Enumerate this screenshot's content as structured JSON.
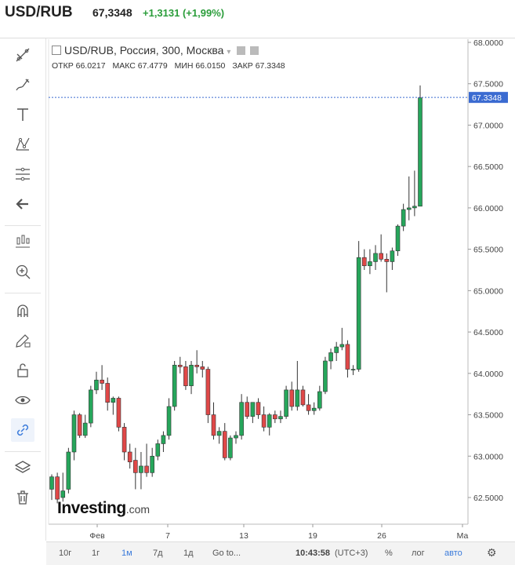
{
  "header": {
    "pair": "USD/RUB",
    "price": "67,3348",
    "change": "+1,3131 (+1,99%)"
  },
  "legend": {
    "title": "USD/RUB, Россия, 300, Москва",
    "open": "ОТКР 66.0217",
    "high": "МАКС 67.4779",
    "low": "МИН 66.0150",
    "close": "ЗАКР 67.3348"
  },
  "logo": {
    "main": "Investing",
    "suffix": ".com"
  },
  "toolbar": {
    "icons": [
      "trend-line-icon",
      "brush-icon",
      "text-icon",
      "pattern-icon",
      "fib-icon",
      "back-arrow-icon",
      "measure-icon",
      "zoom-in-icon",
      "magnet-icon",
      "pencil-lock-icon",
      "unlock-icon",
      "eye-icon",
      "link-icon",
      "layers-icon",
      "trash-icon"
    ]
  },
  "bottom": {
    "ranges": [
      "10г",
      "1г",
      "1м",
      "7д",
      "1д"
    ],
    "active_range": "1м",
    "goto": "Go to...",
    "time": "10:43:58",
    "tz": "(UTC+3)",
    "percent": "%",
    "log": "лог",
    "auto": "авто"
  },
  "chart_data": {
    "type": "candlestick",
    "yticks": [
      62.5,
      63.0,
      63.5,
      64.0,
      64.5,
      65.0,
      65.5,
      66.0,
      66.5,
      67.0,
      67.5,
      68.0
    ],
    "ylim": [
      62.0,
      68.05
    ],
    "xticks": [
      "Фев",
      "7",
      "13",
      "19",
      "26",
      "Ма"
    ],
    "last_price": "67.3348",
    "colors": {
      "up": "#26a65b",
      "down": "#e04848",
      "last_line": "#3b6bd1"
    },
    "candles": [
      {
        "o": 62.6,
        "h": 62.78,
        "l": 62.47,
        "c": 62.75
      },
      {
        "o": 62.75,
        "h": 62.8,
        "l": 62.43,
        "c": 62.48
      },
      {
        "o": 62.5,
        "h": 62.8,
        "l": 62.45,
        "c": 62.58
      },
      {
        "o": 62.6,
        "h": 63.1,
        "l": 62.55,
        "c": 63.05
      },
      {
        "o": 63.05,
        "h": 63.55,
        "l": 62.95,
        "c": 63.5
      },
      {
        "o": 63.5,
        "h": 63.52,
        "l": 63.22,
        "c": 63.25
      },
      {
        "o": 63.25,
        "h": 63.5,
        "l": 63.22,
        "c": 63.4
      },
      {
        "o": 63.4,
        "h": 63.85,
        "l": 63.35,
        "c": 63.8
      },
      {
        "o": 63.8,
        "h": 64.02,
        "l": 63.75,
        "c": 63.92
      },
      {
        "o": 63.92,
        "h": 64.1,
        "l": 63.8,
        "c": 63.88
      },
      {
        "o": 63.88,
        "h": 63.95,
        "l": 63.55,
        "c": 63.65
      },
      {
        "o": 63.65,
        "h": 63.72,
        "l": 63.5,
        "c": 63.7
      },
      {
        "o": 63.7,
        "h": 63.72,
        "l": 63.3,
        "c": 63.35
      },
      {
        "o": 63.35,
        "h": 63.4,
        "l": 62.95,
        "c": 63.05
      },
      {
        "o": 63.05,
        "h": 63.15,
        "l": 62.85,
        "c": 62.93
      },
      {
        "o": 62.95,
        "h": 63.1,
        "l": 62.6,
        "c": 62.8
      },
      {
        "o": 62.8,
        "h": 63.05,
        "l": 62.6,
        "c": 62.88
      },
      {
        "o": 62.88,
        "h": 63.15,
        "l": 62.75,
        "c": 62.8
      },
      {
        "o": 62.8,
        "h": 63.1,
        "l": 62.75,
        "c": 63.0
      },
      {
        "o": 63.0,
        "h": 63.2,
        "l": 62.95,
        "c": 63.15
      },
      {
        "o": 63.15,
        "h": 63.3,
        "l": 63.05,
        "c": 63.25
      },
      {
        "o": 63.25,
        "h": 63.7,
        "l": 63.2,
        "c": 63.6
      },
      {
        "o": 63.6,
        "h": 64.15,
        "l": 63.55,
        "c": 64.1
      },
      {
        "o": 64.1,
        "h": 64.2,
        "l": 64.0,
        "c": 64.08
      },
      {
        "o": 64.08,
        "h": 64.15,
        "l": 63.8,
        "c": 63.85
      },
      {
        "o": 63.85,
        "h": 64.15,
        "l": 63.75,
        "c": 64.1
      },
      {
        "o": 64.1,
        "h": 64.28,
        "l": 64.0,
        "c": 64.08
      },
      {
        "o": 64.08,
        "h": 64.15,
        "l": 63.95,
        "c": 64.05
      },
      {
        "o": 64.05,
        "h": 64.08,
        "l": 63.4,
        "c": 63.5
      },
      {
        "o": 63.5,
        "h": 63.65,
        "l": 63.2,
        "c": 63.25
      },
      {
        "o": 63.25,
        "h": 63.35,
        "l": 63.15,
        "c": 63.3
      },
      {
        "o": 63.3,
        "h": 63.4,
        "l": 62.95,
        "c": 62.98
      },
      {
        "o": 62.98,
        "h": 63.25,
        "l": 62.95,
        "c": 63.22
      },
      {
        "o": 63.22,
        "h": 63.3,
        "l": 63.15,
        "c": 63.25
      },
      {
        "o": 63.25,
        "h": 63.75,
        "l": 63.2,
        "c": 63.65
      },
      {
        "o": 63.65,
        "h": 63.72,
        "l": 63.45,
        "c": 63.48
      },
      {
        "o": 63.48,
        "h": 63.65,
        "l": 63.4,
        "c": 63.65
      },
      {
        "o": 63.65,
        "h": 63.7,
        "l": 63.45,
        "c": 63.5
      },
      {
        "o": 63.5,
        "h": 63.6,
        "l": 63.3,
        "c": 63.35
      },
      {
        "o": 63.35,
        "h": 63.52,
        "l": 63.25,
        "c": 63.5
      },
      {
        "o": 63.5,
        "h": 63.55,
        "l": 63.4,
        "c": 63.45
      },
      {
        "o": 63.45,
        "h": 63.55,
        "l": 63.4,
        "c": 63.48
      },
      {
        "o": 63.48,
        "h": 63.85,
        "l": 63.45,
        "c": 63.8
      },
      {
        "o": 63.8,
        "h": 63.9,
        "l": 63.55,
        "c": 63.6
      },
      {
        "o": 63.6,
        "h": 64.15,
        "l": 63.55,
        "c": 63.8
      },
      {
        "o": 63.8,
        "h": 63.85,
        "l": 63.6,
        "c": 63.62
      },
      {
        "o": 63.62,
        "h": 63.75,
        "l": 63.5,
        "c": 63.55
      },
      {
        "o": 63.55,
        "h": 63.65,
        "l": 63.5,
        "c": 63.58
      },
      {
        "o": 63.58,
        "h": 63.85,
        "l": 63.55,
        "c": 63.78
      },
      {
        "o": 63.78,
        "h": 64.2,
        "l": 63.75,
        "c": 64.15
      },
      {
        "o": 64.15,
        "h": 64.3,
        "l": 64.05,
        "c": 64.25
      },
      {
        "o": 64.25,
        "h": 64.38,
        "l": 64.15,
        "c": 64.32
      },
      {
        "o": 64.32,
        "h": 64.55,
        "l": 64.28,
        "c": 64.35
      },
      {
        "o": 64.35,
        "h": 64.4,
        "l": 63.95,
        "c": 64.05
      },
      {
        "o": 64.05,
        "h": 64.1,
        "l": 63.98,
        "c": 64.05
      },
      {
        "o": 64.05,
        "h": 65.6,
        "l": 64.02,
        "c": 65.4
      },
      {
        "o": 65.4,
        "h": 65.5,
        "l": 65.25,
        "c": 65.3
      },
      {
        "o": 65.3,
        "h": 65.5,
        "l": 65.2,
        "c": 65.35
      },
      {
        "o": 65.35,
        "h": 65.55,
        "l": 65.25,
        "c": 65.45
      },
      {
        "o": 65.45,
        "h": 65.68,
        "l": 65.35,
        "c": 65.38
      },
      {
        "o": 65.38,
        "h": 65.45,
        "l": 64.98,
        "c": 65.35
      },
      {
        "o": 65.35,
        "h": 65.52,
        "l": 65.25,
        "c": 65.48
      },
      {
        "o": 65.48,
        "h": 65.8,
        "l": 65.42,
        "c": 65.78
      },
      {
        "o": 65.78,
        "h": 66.05,
        "l": 65.72,
        "c": 65.98
      },
      {
        "o": 65.98,
        "h": 66.38,
        "l": 65.85,
        "c": 66.0
      },
      {
        "o": 66.0,
        "h": 66.45,
        "l": 65.9,
        "c": 66.02
      },
      {
        "o": 66.02,
        "h": 67.48,
        "l": 66.02,
        "c": 67.33
      }
    ]
  }
}
